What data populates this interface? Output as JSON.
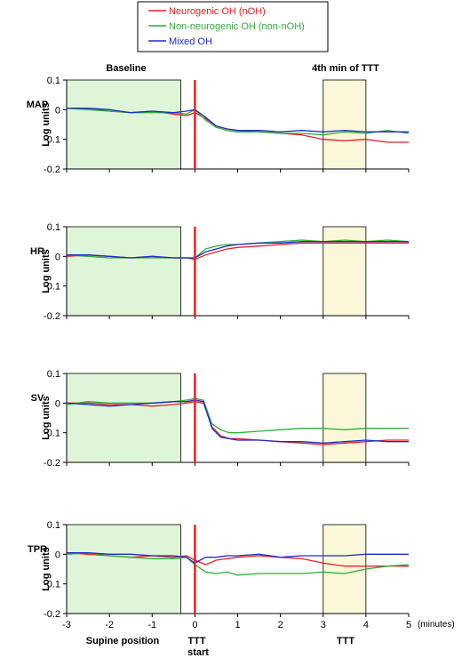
{
  "legend": {
    "placement": "top-center",
    "entries": [
      {
        "name": "Neurogenic OH (nOH)",
        "color": "#e8202a"
      },
      {
        "name": "Non-neurogenic OH (non-nOH)",
        "color": "#2fae3a"
      },
      {
        "name": "Mixed OH",
        "color": "#1c2fc8"
      }
    ]
  },
  "annotations": {
    "baseline": "Baseline",
    "tilt_window": "4th min of TTT",
    "x_unit": "(minutes)",
    "bottom_left": "Supine position",
    "bottom_mid": "TTT\nstart",
    "bottom_right": "TTT"
  },
  "colors": {
    "baseline_fill": "#dff5d8",
    "tilt_fill": "#fbf8d9",
    "tilt_start_line": "#e8202a",
    "axis": "#000000"
  },
  "chart_data": {
    "type": "line",
    "xlabel": "(minutes)",
    "xlim": [
      -3,
      5
    ],
    "xticks": [
      "-3",
      "-2",
      "-1",
      "0",
      "1",
      "2",
      "3",
      "4",
      "5"
    ],
    "shaded_regions": [
      {
        "label": "Baseline",
        "from": -3,
        "to": -0.33
      },
      {
        "label": "4th min of TTT",
        "from": 3,
        "to": 4
      }
    ],
    "vertical_line_at": 0,
    "panels": [
      {
        "name": "MAP",
        "ylabel": "Log units",
        "ylim": [
          -0.2,
          0.1
        ],
        "yticks": [
          "0.1",
          "0",
          "-0.1",
          "-0.2"
        ],
        "x": [
          -3,
          -2.5,
          -2,
          -1.5,
          -1,
          -0.5,
          -0.2,
          0,
          0.25,
          0.5,
          0.75,
          1,
          1.5,
          2,
          2.5,
          3,
          3.5,
          4,
          4.5,
          5
        ],
        "series": [
          {
            "name": "Neurogenic OH (nOH)",
            "values": [
              0.005,
              0.005,
              -0.005,
              -0.01,
              -0.005,
              -0.015,
              -0.02,
              -0.01,
              -0.03,
              -0.055,
              -0.065,
              -0.07,
              -0.075,
              -0.08,
              -0.085,
              -0.1,
              -0.105,
              -0.1,
              -0.11,
              -0.11
            ]
          },
          {
            "name": "Non-neurogenic OH (non-nOH)",
            "values": [
              0.005,
              0.0,
              -0.005,
              -0.01,
              -0.01,
              -0.01,
              -0.015,
              0.0,
              -0.035,
              -0.06,
              -0.07,
              -0.075,
              -0.075,
              -0.08,
              -0.08,
              -0.085,
              -0.075,
              -0.08,
              -0.07,
              -0.08
            ]
          },
          {
            "name": "Mixed OH",
            "values": [
              0.005,
              0.005,
              0.0,
              -0.01,
              -0.005,
              -0.01,
              -0.005,
              0.0,
              -0.025,
              -0.055,
              -0.065,
              -0.07,
              -0.07,
              -0.075,
              -0.07,
              -0.075,
              -0.07,
              -0.075,
              -0.075,
              -0.075
            ]
          }
        ]
      },
      {
        "name": "HR",
        "ylabel": "Log units",
        "ylim": [
          -0.2,
          0.1
        ],
        "yticks": [
          "0.1",
          "0",
          "-0.1",
          "-0.2"
        ],
        "x": [
          -3,
          -2.5,
          -2,
          -1.5,
          -1,
          -0.5,
          -0.2,
          0,
          0.25,
          0.5,
          0.75,
          1,
          1.5,
          2,
          2.5,
          3,
          3.5,
          4,
          4.5,
          5
        ],
        "series": [
          {
            "name": "Neurogenic OH (nOH)",
            "values": [
              0.0,
              0.005,
              0.0,
              -0.005,
              0.0,
              -0.005,
              -0.005,
              -0.01,
              0.005,
              0.015,
              0.025,
              0.03,
              0.035,
              0.04,
              0.045,
              0.045,
              0.045,
              0.045,
              0.045,
              0.045
            ]
          },
          {
            "name": "Non-neurogenic OH (non-nOH)",
            "values": [
              0.005,
              0.0,
              -0.005,
              -0.005,
              -0.005,
              -0.005,
              -0.005,
              -0.005,
              0.025,
              0.035,
              0.04,
              0.04,
              0.045,
              0.05,
              0.055,
              0.05,
              0.055,
              0.05,
              0.055,
              0.05
            ]
          },
          {
            "name": "Mixed OH",
            "values": [
              0.005,
              0.005,
              0.0,
              -0.005,
              0.0,
              -0.005,
              -0.005,
              -0.005,
              0.015,
              0.025,
              0.035,
              0.04,
              0.045,
              0.045,
              0.05,
              0.05,
              0.05,
              0.05,
              0.05,
              0.05
            ]
          }
        ]
      },
      {
        "name": "SV",
        "ylabel": "Log units",
        "ylim": [
          -0.2,
          0.1
        ],
        "yticks": [
          "0.1",
          "0",
          "-0.1",
          "-0.2"
        ],
        "x": [
          -3,
          -2.5,
          -2,
          -1.5,
          -1,
          -0.5,
          -0.2,
          0,
          0.2,
          0.4,
          0.6,
          0.8,
          1,
          1.5,
          2,
          2.5,
          3,
          3.5,
          4,
          4.5,
          5
        ],
        "series": [
          {
            "name": "Neurogenic OH (nOH)",
            "values": [
              0.0,
              0.0,
              -0.005,
              -0.005,
              -0.01,
              -0.005,
              0.0,
              0.005,
              0.0,
              -0.08,
              -0.11,
              -0.12,
              -0.12,
              -0.125,
              -0.13,
              -0.135,
              -0.14,
              -0.135,
              -0.13,
              -0.125,
              -0.125
            ]
          },
          {
            "name": "Non-neurogenic OH (non-nOH)",
            "values": [
              -0.005,
              0.005,
              0.0,
              0.0,
              0.0,
              0.005,
              0.01,
              0.015,
              0.01,
              -0.07,
              -0.09,
              -0.1,
              -0.1,
              -0.095,
              -0.09,
              -0.085,
              -0.085,
              -0.09,
              -0.085,
              -0.085,
              -0.085
            ]
          },
          {
            "name": "Mixed OH",
            "values": [
              0.0,
              -0.005,
              -0.01,
              -0.005,
              0.0,
              0.005,
              0.005,
              0.01,
              0.005,
              -0.085,
              -0.115,
              -0.12,
              -0.125,
              -0.125,
              -0.13,
              -0.13,
              -0.135,
              -0.13,
              -0.125,
              -0.13,
              -0.13
            ]
          }
        ]
      },
      {
        "name": "TPR",
        "ylabel": "Log units",
        "ylim": [
          -0.2,
          0.1
        ],
        "yticks": [
          "0.1",
          "0",
          "-0.1",
          "-0.2"
        ],
        "x": [
          -3,
          -2.5,
          -2,
          -1.5,
          -1,
          -0.5,
          -0.2,
          0,
          0.25,
          0.5,
          0.75,
          1,
          1.5,
          2,
          2.5,
          3,
          3.5,
          4,
          4.5,
          5
        ],
        "series": [
          {
            "name": "Neurogenic OH (nOH)",
            "values": [
              0.005,
              0.0,
              -0.005,
              -0.01,
              -0.005,
              -0.01,
              -0.005,
              -0.02,
              -0.035,
              -0.02,
              -0.015,
              -0.01,
              -0.005,
              -0.01,
              -0.015,
              -0.03,
              -0.04,
              -0.04,
              -0.04,
              -0.04
            ]
          },
          {
            "name": "Non-neurogenic OH (non-nOH)",
            "values": [
              0.0,
              0.005,
              -0.005,
              -0.01,
              -0.015,
              -0.015,
              -0.01,
              -0.035,
              -0.06,
              -0.065,
              -0.06,
              -0.07,
              -0.065,
              -0.065,
              -0.065,
              -0.06,
              -0.065,
              -0.05,
              -0.04,
              -0.035
            ]
          },
          {
            "name": "Mixed OH",
            "values": [
              0.005,
              0.005,
              0.0,
              0.0,
              -0.005,
              -0.005,
              -0.01,
              -0.03,
              -0.01,
              -0.01,
              -0.005,
              -0.005,
              0.0,
              -0.01,
              -0.005,
              -0.005,
              -0.005,
              0.0,
              0.0,
              0.0
            ]
          }
        ]
      }
    ]
  }
}
